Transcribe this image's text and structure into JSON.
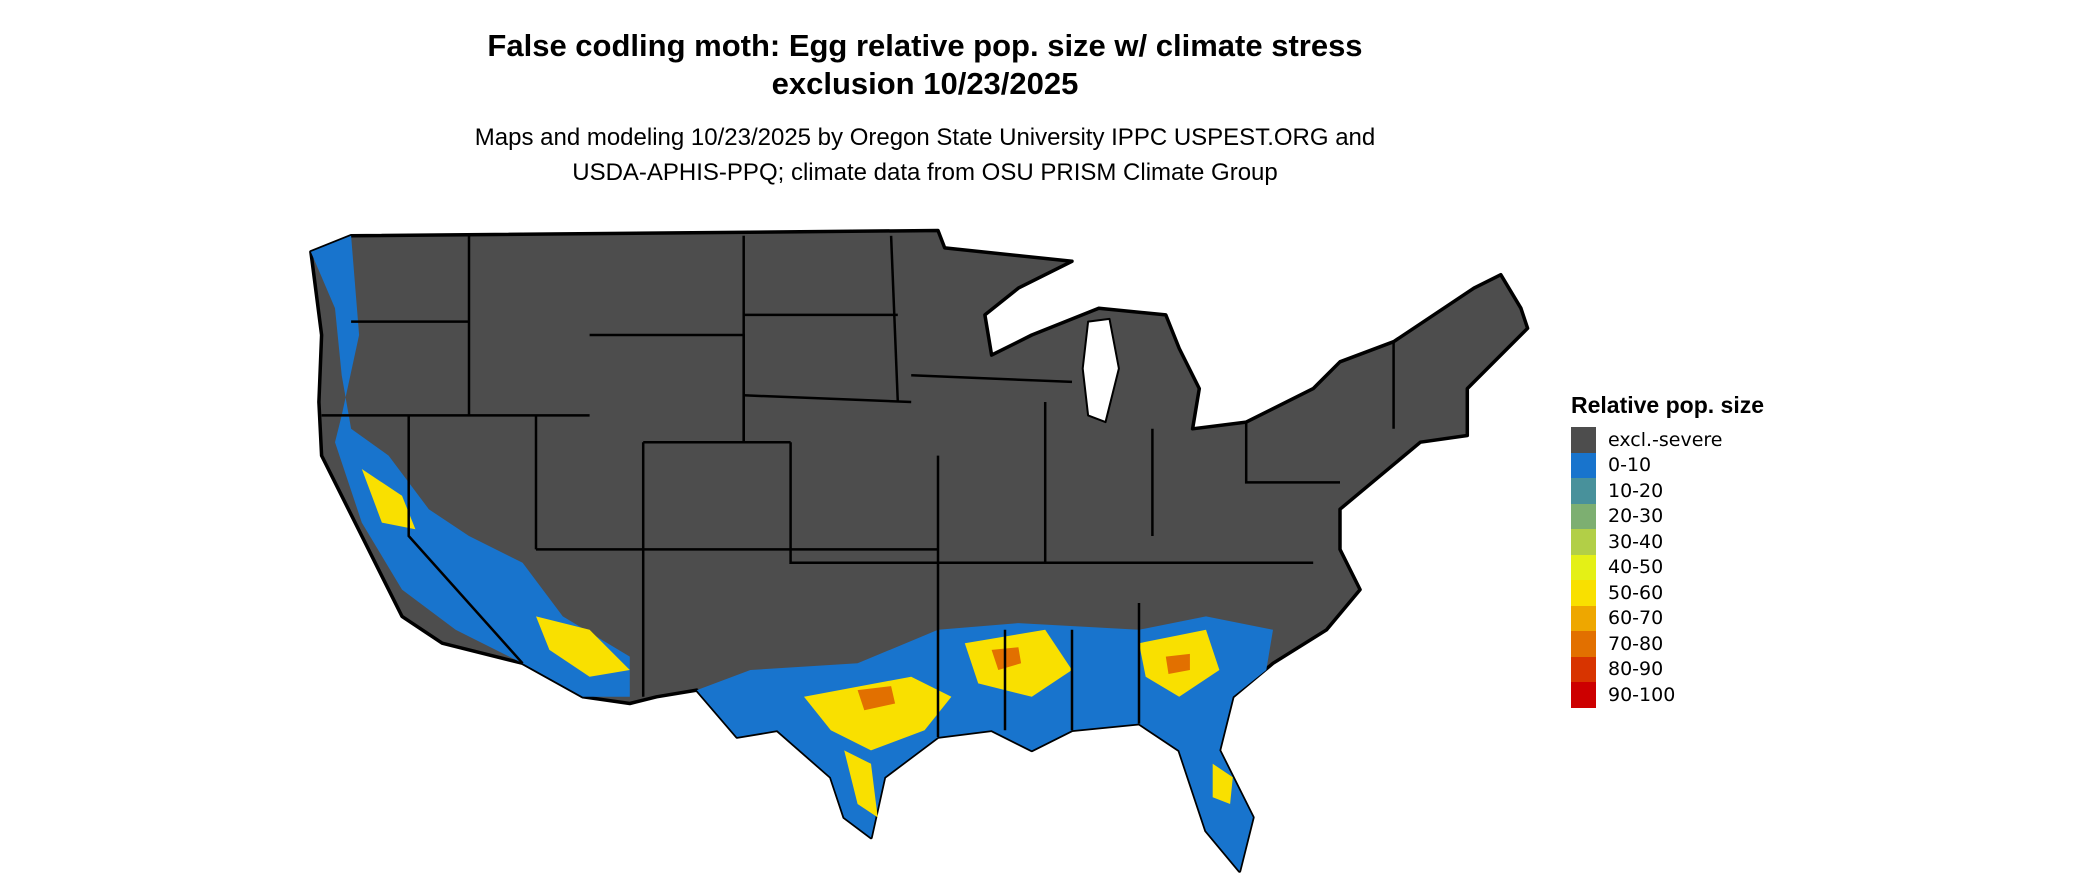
{
  "title_line1": "False codling moth: Egg relative pop. size w/ climate stress",
  "title_line2": "exclusion 10/23/2025",
  "subtitle_line1": "Maps and modeling 10/23/2025 by Oregon State University IPPC USPEST.ORG and",
  "subtitle_line2": "USDA-APHIS-PPQ; climate data from OSU PRISM Climate Group",
  "legend": {
    "title": "Relative pop. size",
    "items": [
      {
        "label": "excl.-severe",
        "color": "#4d4d4d"
      },
      {
        "label": "0-10",
        "color": "#1874cd"
      },
      {
        "label": "10-20",
        "color": "#48919b"
      },
      {
        "label": "20-30",
        "color": "#7daf71"
      },
      {
        "label": "30-40",
        "color": "#b2cf47"
      },
      {
        "label": "40-50",
        "color": "#e4f016"
      },
      {
        "label": "50-60",
        "color": "#f9e000"
      },
      {
        "label": "60-70",
        "color": "#eea700"
      },
      {
        "label": "70-80",
        "color": "#e27000"
      },
      {
        "label": "80-90",
        "color": "#d83400"
      },
      {
        "label": "90-100",
        "color": "#cd0000"
      }
    ]
  }
}
